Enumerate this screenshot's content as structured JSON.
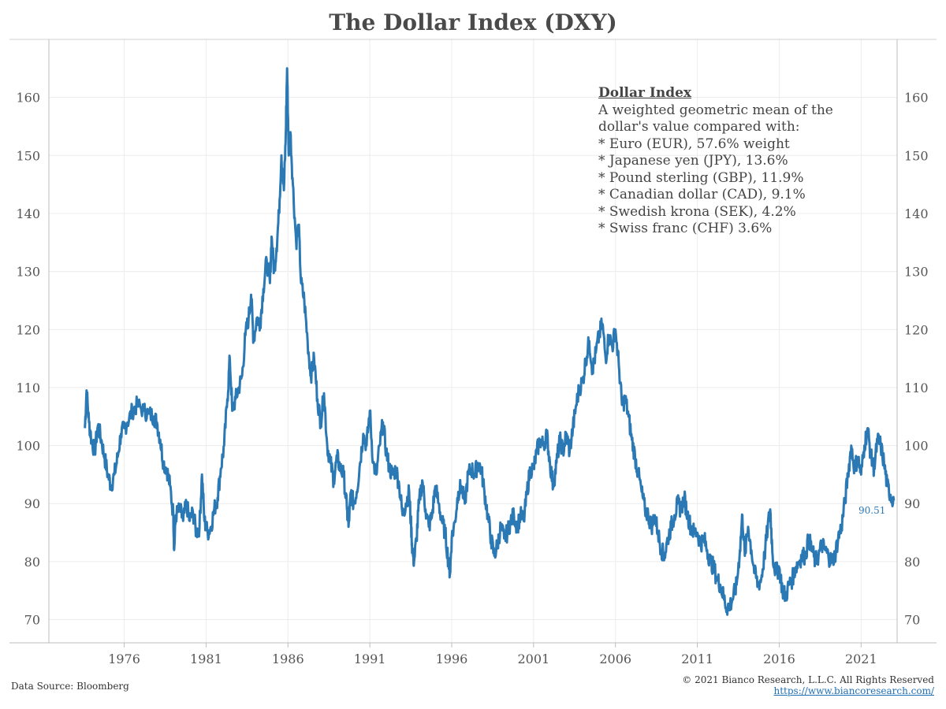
{
  "title": "The Dollar Index (DXY)",
  "note": {
    "heading": "Dollar Index",
    "lines": [
      "A weighted geometric mean of the",
      "dollar's value compared with:",
      "* Euro (EUR), 57.6% weight",
      "* Japanese yen (JPY), 13.6%",
      "* Pound sterling (GBP), 11.9%",
      "* Canadian dollar (CAD), 9.1%",
      "* Swedish krona (SEK), 4.2%",
      "* Swiss franc (CHF) 3.6%"
    ]
  },
  "footer": {
    "source": "Data Source: Bloomberg",
    "copyright": "© 2021 Bianco Research, L.L.C. All Rights Reserved",
    "url": "https://www.biancoresearch.com/"
  },
  "colors": {
    "line": "#2a78b4",
    "grid": "#ececec",
    "axis": "#bdbdbd"
  },
  "chart_data": {
    "type": "line",
    "xlim": [
      1971.4,
      2023.2
    ],
    "ylim": [
      66,
      170
    ],
    "x_ticks": [
      1976,
      1981,
      1986,
      1991,
      1996,
      2001,
      2006,
      2011,
      2016,
      2021
    ],
    "y_ticks": [
      70,
      80,
      90,
      100,
      110,
      120,
      130,
      140,
      150,
      160
    ],
    "grid": true,
    "last_value_label": "90.51",
    "series": [
      {
        "points": [
          [
            1973.6,
            103
          ],
          [
            1973.7,
            109.5
          ],
          [
            1973.85,
            104
          ],
          [
            1974.0,
            101
          ],
          [
            1974.2,
            99
          ],
          [
            1974.4,
            103.5
          ],
          [
            1974.6,
            101
          ],
          [
            1974.8,
            98
          ],
          [
            1975.0,
            95
          ],
          [
            1975.2,
            93
          ],
          [
            1975.4,
            95
          ],
          [
            1975.6,
            98
          ],
          [
            1975.8,
            102
          ],
          [
            1976.0,
            103
          ],
          [
            1976.2,
            104
          ],
          [
            1976.5,
            106
          ],
          [
            1976.8,
            107
          ],
          [
            1977.2,
            106
          ],
          [
            1977.5,
            105.5
          ],
          [
            1977.8,
            105
          ],
          [
            1978.0,
            104
          ],
          [
            1978.2,
            101
          ],
          [
            1978.4,
            97
          ],
          [
            1978.6,
            96
          ],
          [
            1978.8,
            93
          ],
          [
            1979.0,
            88
          ],
          [
            1979.05,
            82
          ],
          [
            1979.15,
            88
          ],
          [
            1979.4,
            89
          ],
          [
            1979.6,
            87
          ],
          [
            1979.8,
            90
          ],
          [
            1980.0,
            87
          ],
          [
            1980.2,
            88.5
          ],
          [
            1980.4,
            85
          ],
          [
            1980.6,
            86
          ],
          [
            1980.75,
            95
          ],
          [
            1980.9,
            87
          ],
          [
            1981.1,
            85
          ],
          [
            1981.3,
            86
          ],
          [
            1981.5,
            89
          ],
          [
            1981.7,
            91
          ],
          [
            1981.9,
            96
          ],
          [
            1982.1,
            100
          ],
          [
            1982.3,
            108
          ],
          [
            1982.45,
            115
          ],
          [
            1982.6,
            106
          ],
          [
            1982.8,
            108
          ],
          [
            1983.0,
            110
          ],
          [
            1983.2,
            112
          ],
          [
            1983.4,
            119
          ],
          [
            1983.6,
            122
          ],
          [
            1983.75,
            126
          ],
          [
            1983.9,
            118
          ],
          [
            1984.1,
            122
          ],
          [
            1984.3,
            121
          ],
          [
            1984.5,
            127
          ],
          [
            1984.7,
            132
          ],
          [
            1984.9,
            128
          ],
          [
            1985.0,
            136
          ],
          [
            1985.15,
            130
          ],
          [
            1985.3,
            134
          ],
          [
            1985.45,
            140
          ],
          [
            1985.6,
            150
          ],
          [
            1985.75,
            144
          ],
          [
            1985.85,
            152
          ],
          [
            1985.95,
            165
          ],
          [
            1986.05,
            150
          ],
          [
            1986.15,
            154
          ],
          [
            1986.3,
            145
          ],
          [
            1986.5,
            135
          ],
          [
            1986.65,
            138
          ],
          [
            1986.8,
            128
          ],
          [
            1987.0,
            125
          ],
          [
            1987.2,
            118
          ],
          [
            1987.4,
            112
          ],
          [
            1987.6,
            115
          ],
          [
            1987.8,
            108
          ],
          [
            1988.0,
            104
          ],
          [
            1988.2,
            109
          ],
          [
            1988.4,
            100
          ],
          [
            1988.6,
            97
          ],
          [
            1988.8,
            94
          ],
          [
            1989.0,
            98
          ],
          [
            1989.2,
            96
          ],
          [
            1989.4,
            95
          ],
          [
            1989.6,
            89
          ],
          [
            1989.7,
            86
          ],
          [
            1989.85,
            92
          ],
          [
            1990.0,
            90
          ],
          [
            1990.2,
            92
          ],
          [
            1990.4,
            97
          ],
          [
            1990.6,
            102
          ],
          [
            1990.8,
            100
          ],
          [
            1991.0,
            106
          ],
          [
            1991.2,
            97
          ],
          [
            1991.4,
            95
          ],
          [
            1991.6,
            100
          ],
          [
            1991.8,
            104
          ],
          [
            1992.0,
            99
          ],
          [
            1992.2,
            96
          ],
          [
            1992.4,
            95
          ],
          [
            1992.6,
            96
          ],
          [
            1992.8,
            93
          ],
          [
            1993.0,
            88
          ],
          [
            1993.2,
            90
          ],
          [
            1993.4,
            92
          ],
          [
            1993.5,
            87
          ],
          [
            1993.6,
            82
          ],
          [
            1993.7,
            80
          ],
          [
            1993.85,
            84
          ],
          [
            1994.0,
            90
          ],
          [
            1994.2,
            94
          ],
          [
            1994.4,
            89
          ],
          [
            1994.6,
            86
          ],
          [
            1994.8,
            88
          ],
          [
            1995.0,
            93
          ],
          [
            1995.2,
            90
          ],
          [
            1995.4,
            87
          ],
          [
            1995.6,
            85
          ],
          [
            1995.8,
            80
          ],
          [
            1995.9,
            78
          ],
          [
            1996.0,
            84
          ],
          [
            1996.2,
            87
          ],
          [
            1996.4,
            92
          ],
          [
            1996.6,
            93
          ],
          [
            1996.8,
            90
          ],
          [
            1997.0,
            95
          ],
          [
            1997.2,
            96
          ],
          [
            1997.4,
            95
          ],
          [
            1997.6,
            97
          ],
          [
            1997.8,
            96
          ],
          [
            1998.0,
            92
          ],
          [
            1998.2,
            88
          ],
          [
            1998.4,
            84
          ],
          [
            1998.6,
            81
          ],
          [
            1998.8,
            83
          ],
          [
            1999.0,
            86
          ],
          [
            1999.2,
            84
          ],
          [
            1999.4,
            85
          ],
          [
            1999.6,
            87
          ],
          [
            1999.8,
            88
          ],
          [
            2000.0,
            86
          ],
          [
            2000.2,
            88
          ],
          [
            2000.4,
            87
          ],
          [
            2000.6,
            92
          ],
          [
            2000.8,
            96
          ],
          [
            2001.0,
            96
          ],
          [
            2001.2,
            99
          ],
          [
            2001.4,
            101
          ],
          [
            2001.6,
            100
          ],
          [
            2001.8,
            102
          ],
          [
            2002.0,
            97
          ],
          [
            2002.2,
            93
          ],
          [
            2002.4,
            97
          ],
          [
            2002.6,
            101
          ],
          [
            2002.8,
            99
          ],
          [
            2003.0,
            102
          ],
          [
            2003.2,
            99
          ],
          [
            2003.4,
            103
          ],
          [
            2003.6,
            107
          ],
          [
            2003.8,
            110
          ],
          [
            2004.0,
            111
          ],
          [
            2004.2,
            115
          ],
          [
            2004.4,
            118
          ],
          [
            2004.6,
            113
          ],
          [
            2004.8,
            116
          ],
          [
            2005.0,
            119
          ],
          [
            2005.2,
            121
          ],
          [
            2005.4,
            115
          ],
          [
            2005.6,
            119
          ],
          [
            2005.8,
            117
          ],
          [
            2006.0,
            120
          ],
          [
            2006.2,
            114
          ],
          [
            2006.4,
            107
          ],
          [
            2006.6,
            108
          ],
          [
            2006.8,
            105
          ],
          [
            2007.0,
            101
          ],
          [
            2007.2,
            98
          ],
          [
            2007.4,
            95
          ],
          [
            2007.6,
            92
          ],
          [
            2007.8,
            89
          ],
          [
            2008.0,
            88
          ],
          [
            2008.2,
            86
          ],
          [
            2008.4,
            88
          ],
          [
            2008.6,
            85
          ],
          [
            2008.8,
            82
          ],
          [
            2009.0,
            81
          ],
          [
            2009.2,
            84
          ],
          [
            2009.4,
            86
          ],
          [
            2009.6,
            88
          ],
          [
            2009.8,
            90
          ],
          [
            2010.0,
            89
          ],
          [
            2010.2,
            91
          ],
          [
            2010.4,
            88
          ],
          [
            2010.6,
            86
          ],
          [
            2010.8,
            85
          ],
          [
            2011.0,
            85
          ],
          [
            2011.2,
            83
          ],
          [
            2011.4,
            84
          ],
          [
            2011.6,
            82
          ],
          [
            2011.8,
            80
          ],
          [
            2012.0,
            79
          ],
          [
            2012.2,
            77
          ],
          [
            2012.4,
            76
          ],
          [
            2012.6,
            74
          ],
          [
            2012.8,
            72
          ],
          [
            2013.0,
            72.5
          ],
          [
            2013.2,
            74
          ],
          [
            2013.4,
            76
          ],
          [
            2013.6,
            82
          ],
          [
            2013.75,
            88
          ],
          [
            2013.9,
            81
          ],
          [
            2014.1,
            86
          ],
          [
            2014.3,
            82
          ],
          [
            2014.5,
            78
          ],
          [
            2014.7,
            76
          ],
          [
            2014.9,
            77
          ],
          [
            2015.1,
            81
          ],
          [
            2015.3,
            86
          ],
          [
            2015.45,
            89
          ],
          [
            2015.6,
            81
          ],
          [
            2015.8,
            78
          ],
          [
            2016.0,
            79
          ],
          [
            2016.2,
            75
          ],
          [
            2016.4,
            74
          ],
          [
            2016.6,
            76
          ],
          [
            2016.8,
            77
          ],
          [
            2017.0,
            79
          ],
          [
            2017.2,
            80
          ],
          [
            2017.4,
            81
          ],
          [
            2017.6,
            81
          ],
          [
            2017.8,
            84
          ],
          [
            2018.0,
            82
          ],
          [
            2018.2,
            80
          ],
          [
            2018.4,
            81
          ],
          [
            2018.6,
            83
          ],
          [
            2018.8,
            82
          ],
          [
            2019.0,
            81
          ],
          [
            2019.2,
            80
          ],
          [
            2019.4,
            81
          ],
          [
            2019.6,
            84
          ],
          [
            2019.8,
            86
          ],
          [
            2020.0,
            90
          ],
          [
            2020.2,
            95
          ],
          [
            2020.4,
            100
          ],
          [
            2020.6,
            96
          ],
          [
            2020.8,
            98
          ],
          [
            2021.0,
            95
          ],
          [
            2021.2,
            100
          ],
          [
            2021.4,
            103
          ],
          [
            2021.6,
            98
          ],
          [
            2021.8,
            96
          ],
          [
            2022.0,
            101
          ],
          [
            2022.2,
            100
          ],
          [
            2022.4,
            97
          ],
          [
            2022.6,
            93
          ],
          [
            2022.8,
            91.5
          ],
          [
            2023.0,
            90.51
          ]
        ]
      }
    ]
  }
}
